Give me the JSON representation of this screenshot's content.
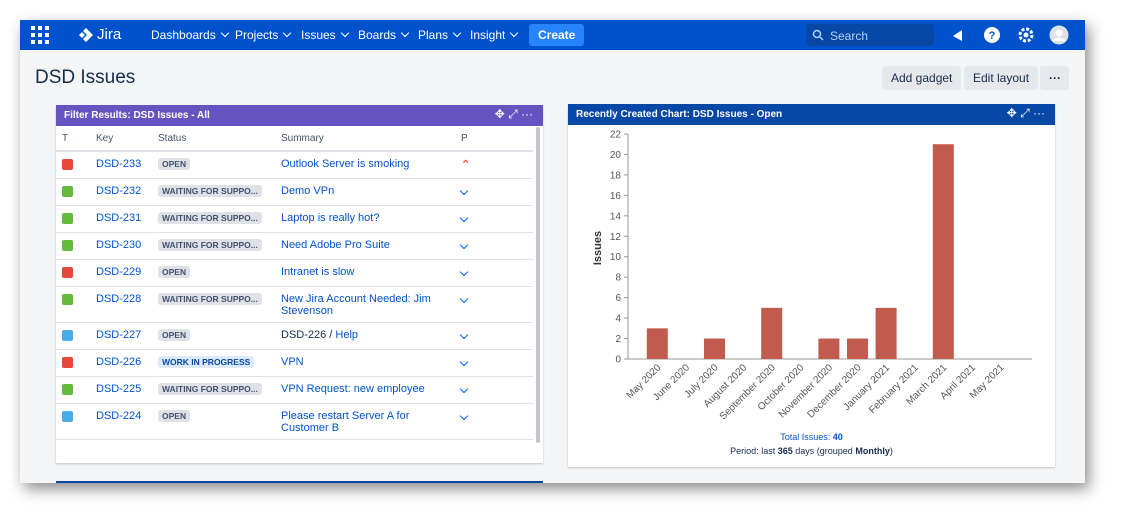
{
  "nav": {
    "logo": "Jira",
    "items": [
      "Dashboards",
      "Projects",
      "Issues",
      "Boards",
      "Plans",
      "Insight"
    ],
    "create": "Create",
    "search": "Search"
  },
  "header": {
    "title": "DSD Issues",
    "buttons": [
      "Add gadget",
      "Edit layout"
    ]
  },
  "filter": {
    "title": "Filter Results: DSD Issues - All",
    "columns": [
      "T",
      "Key",
      "Status",
      "Summary",
      "P"
    ],
    "rows": [
      {
        "key": "DSD-233",
        "status": "OPEN",
        "summary": "Outlook Server is smoking"
      },
      {
        "key": "DSD-232",
        "status": "WAITING FOR SUPPO...",
        "summary": "Demo VPn"
      },
      {
        "key": "DSD-231",
        "status": "WAITING FOR SUPPO...",
        "summary": "Laptop is really hot?"
      },
      {
        "key": "DSD-230",
        "status": "WAITING FOR SUPPO...",
        "summary": "Need Adobe Pro Suite"
      },
      {
        "key": "DSD-229",
        "status": "OPEN",
        "summary": "Intranet is slow"
      },
      {
        "key": "DSD-228",
        "status": "WAITING FOR SUPPO...",
        "summary": "New Jira Account Needed: Jim Stevenson"
      },
      {
        "key": "DSD-227",
        "status": "OPEN",
        "parent": "DSD-226 /",
        "summary": "Help"
      },
      {
        "key": "DSD-226",
        "status": "WORK IN PROGRESS",
        "summary": "VPN"
      },
      {
        "key": "DSD-225",
        "status": "WAITING FOR SUPPO...",
        "summary": "VPN Request: new employee"
      },
      {
        "key": "DSD-224",
        "status": "OPEN",
        "summary": "Please restart Server A for Customer B"
      }
    ]
  },
  "chart_data": {
    "type": "bar",
    "title": "Recently Created Chart: DSD Issues - Open",
    "y_label": "Issues",
    "categories": [
      "May 2020",
      "June 2020",
      "July 2020",
      "August 2020",
      "September 2020",
      "October 2020",
      "November 2020",
      "December 2020",
      "January 2021",
      "February 2021",
      "March 2021",
      "April 2021",
      "May 2021"
    ],
    "values": [
      3,
      0,
      2,
      0,
      5,
      0,
      2,
      2,
      5,
      0,
      21,
      0,
      0
    ],
    "color": "#c15b4d",
    "ylim": [
      0,
      22
    ],
    "yticks": [
      0,
      2,
      4,
      6,
      8,
      10,
      12,
      14,
      16,
      18,
      20,
      22
    ]
  },
  "chart_footer": {
    "total_label": "Total Issues:",
    "total": 40,
    "period_prefix": "Period: last",
    "period_days": 365,
    "period_mid": "days (grouped",
    "period_group": "Monthly",
    "period_end": ")"
  }
}
